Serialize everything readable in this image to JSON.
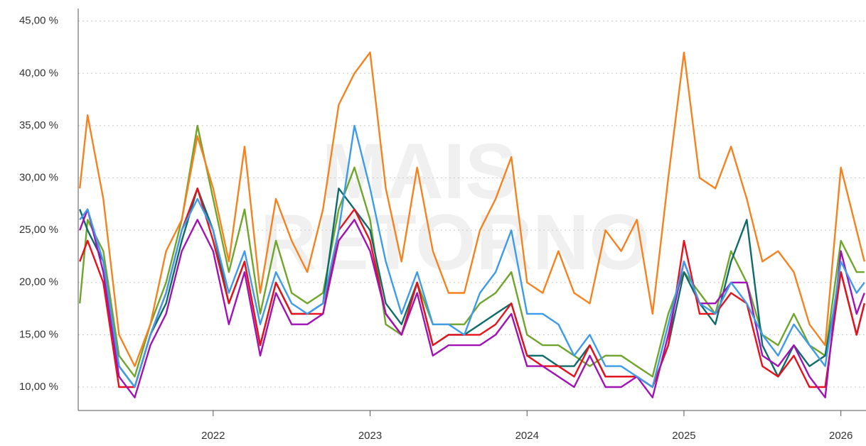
{
  "chart_data": {
    "type": "line",
    "watermark": [
      "MAIS",
      "RETORNO"
    ],
    "x": [
      2021.15,
      2021.2,
      2021.3,
      2021.4,
      2021.5,
      2021.6,
      2021.7,
      2021.8,
      2021.9,
      2022.0,
      2022.1,
      2022.2,
      2022.3,
      2022.4,
      2022.5,
      2022.6,
      2022.7,
      2022.8,
      2022.9,
      2023.0,
      2023.1,
      2023.2,
      2023.3,
      2023.4,
      2023.5,
      2023.6,
      2023.7,
      2023.8,
      2023.9,
      2024.0,
      2024.1,
      2024.2,
      2024.3,
      2024.4,
      2024.5,
      2024.6,
      2024.7,
      2024.8,
      2024.9,
      2025.0,
      2025.1,
      2025.2,
      2025.3,
      2025.4,
      2025.5,
      2025.6,
      2025.7,
      2025.8,
      2025.9,
      2026.0,
      2026.1,
      2026.15
    ],
    "series": [
      {
        "color": "#6fa52a",
        "values": [
          18,
          26,
          23,
          13,
          11,
          16,
          20,
          26,
          35,
          28,
          21,
          27,
          17,
          24,
          19,
          18,
          19,
          27,
          31,
          26,
          16,
          15,
          20,
          16,
          16,
          16,
          18,
          19,
          21,
          15,
          14,
          14,
          13,
          12,
          13,
          13,
          12,
          11,
          17,
          21,
          19,
          17,
          23,
          20,
          15,
          14,
          17,
          14,
          13,
          24,
          21,
          21
        ]
      },
      {
        "color": "#0f6b6b",
        "values": [
          27,
          25,
          22,
          12,
          10,
          15,
          18,
          24,
          29,
          25,
          18,
          22,
          14,
          20,
          17,
          17,
          18,
          29,
          27,
          25,
          18,
          16,
          20,
          14,
          15,
          15,
          16,
          17,
          18,
          13,
          13,
          12,
          12,
          14,
          11,
          11,
          11,
          10,
          14,
          21,
          18,
          16,
          22,
          26,
          14,
          11,
          14,
          12,
          13,
          21,
          15,
          18
        ]
      },
      {
        "color": "#e8101a",
        "values": [
          22,
          24,
          20,
          10,
          10,
          15,
          19,
          25,
          29,
          24,
          18,
          22,
          14,
          20,
          17,
          17,
          17,
          25,
          27,
          24,
          17,
          15,
          20,
          14,
          15,
          15,
          15,
          16,
          18,
          13,
          12,
          12,
          11,
          14,
          11,
          11,
          11,
          10,
          14,
          24,
          17,
          17,
          19,
          18,
          12,
          11,
          13,
          10,
          10,
          21,
          15,
          18
        ]
      },
      {
        "color": "#a012b4",
        "values": [
          25,
          27,
          21,
          11,
          9,
          14,
          17,
          23,
          26,
          23,
          16,
          21,
          13,
          19,
          16,
          16,
          17,
          24,
          26,
          23,
          17,
          15,
          19,
          13,
          14,
          14,
          14,
          15,
          17,
          12,
          12,
          11,
          10,
          13,
          10,
          10,
          11,
          9,
          15,
          22,
          18,
          18,
          20,
          20,
          13,
          12,
          14,
          11,
          9,
          23,
          17,
          19
        ]
      },
      {
        "color": "#3d9be9",
        "values": [
          26,
          27,
          22,
          12,
          10,
          15,
          19,
          25,
          28,
          25,
          19,
          23,
          16,
          21,
          18,
          17,
          18,
          25,
          35,
          29,
          22,
          17,
          21,
          16,
          16,
          15,
          19,
          21,
          25,
          17,
          17,
          16,
          13,
          15,
          12,
          12,
          11,
          10,
          16,
          22,
          18,
          17,
          20,
          18,
          15,
          13,
          16,
          14,
          12,
          22,
          19,
          20
        ]
      },
      {
        "color": "#f5821f",
        "values": [
          29,
          36,
          28,
          15,
          12,
          16,
          23,
          26,
          34,
          29,
          22,
          33,
          19,
          28,
          24,
          21,
          27,
          37,
          40,
          42,
          29,
          22,
          31,
          23,
          19,
          19,
          25,
          28,
          32,
          20,
          19,
          23,
          19,
          18,
          25,
          23,
          26,
          17,
          30,
          42,
          30,
          29,
          33,
          28,
          22,
          23,
          21,
          16,
          14,
          31,
          25,
          22
        ]
      }
    ],
    "xlim": [
      2021.14,
      2026.16
    ],
    "xticks": [
      2022,
      2023,
      2024,
      2025,
      2026
    ],
    "ylim": [
      7.76,
      46.2
    ],
    "yticks": [
      {
        "value": 10,
        "label": "10,00 %"
      },
      {
        "value": 15,
        "label": "15,00 %"
      },
      {
        "value": 20,
        "label": "20,00 %"
      },
      {
        "value": 25,
        "label": "25,00 %"
      },
      {
        "value": 30,
        "label": "30,00 %"
      },
      {
        "value": 35,
        "label": "35,00 %"
      },
      {
        "value": 40,
        "label": "40,00 %"
      },
      {
        "value": 45,
        "label": "45,00 %"
      }
    ],
    "grid": true
  }
}
